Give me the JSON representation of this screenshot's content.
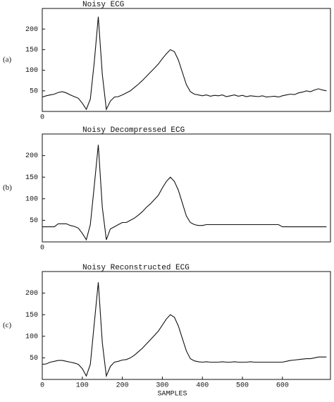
{
  "chart_data": [
    {
      "type": "line",
      "panel": "(a)",
      "title": "Noisy ECG",
      "x": [
        0,
        10,
        20,
        30,
        40,
        50,
        60,
        70,
        80,
        90,
        100,
        110,
        120,
        130,
        140,
        150,
        160,
        170,
        180,
        190,
        200,
        210,
        220,
        230,
        240,
        250,
        260,
        270,
        280,
        290,
        300,
        310,
        320,
        330,
        340,
        350,
        360,
        370,
        380,
        390,
        400,
        410,
        420,
        430,
        440,
        450,
        460,
        470,
        480,
        490,
        500,
        510,
        520,
        530,
        540,
        550,
        560,
        570,
        580,
        590,
        600,
        610,
        620,
        630,
        640,
        650,
        660,
        670,
        680,
        690,
        700,
        710
      ],
      "series": [
        {
          "color": "#111111",
          "values": [
            35,
            38,
            40,
            42,
            46,
            48,
            45,
            40,
            36,
            32,
            20,
            5,
            30,
            120,
            230,
            90,
            5,
            25,
            35,
            36,
            40,
            45,
            50,
            58,
            66,
            75,
            85,
            95,
            105,
            115,
            128,
            140,
            150,
            145,
            125,
            95,
            65,
            48,
            42,
            40,
            38,
            40,
            37,
            39,
            38,
            40,
            36,
            38,
            40,
            37,
            39,
            36,
            38,
            37,
            36,
            38,
            35,
            36,
            37,
            35,
            38,
            40,
            42,
            41,
            45,
            47,
            50,
            48,
            52,
            55,
            52,
            50
          ]
        }
      ],
      "xlim": [
        0,
        720
      ],
      "ylim": [
        0,
        250
      ],
      "xticks": [
        0
      ],
      "yticks": [
        50,
        100,
        150,
        200
      ]
    },
    {
      "type": "line",
      "panel": "(b)",
      "title": "Noisy Decompressed ECG",
      "x": [
        0,
        10,
        20,
        30,
        40,
        50,
        60,
        70,
        80,
        90,
        100,
        110,
        120,
        130,
        140,
        150,
        160,
        170,
        180,
        190,
        200,
        210,
        220,
        230,
        240,
        250,
        260,
        270,
        280,
        290,
        300,
        310,
        320,
        330,
        340,
        350,
        360,
        370,
        380,
        390,
        400,
        410,
        420,
        430,
        440,
        450,
        460,
        470,
        480,
        490,
        500,
        510,
        520,
        530,
        540,
        550,
        560,
        570,
        580,
        590,
        600,
        610,
        620,
        630,
        640,
        650,
        660,
        670,
        680,
        690,
        700,
        710
      ],
      "series": [
        {
          "color": "#111111",
          "values": [
            35,
            35,
            35,
            35,
            42,
            42,
            42,
            38,
            36,
            32,
            20,
            5,
            40,
            130,
            225,
            80,
            5,
            30,
            35,
            40,
            45,
            45,
            50,
            55,
            62,
            70,
            80,
            88,
            98,
            108,
            125,
            140,
            150,
            140,
            120,
            90,
            60,
            45,
            40,
            38,
            38,
            40,
            40,
            40,
            40,
            40,
            40,
            40,
            40,
            40,
            40,
            40,
            40,
            40,
            40,
            40,
            40,
            40,
            40,
            40,
            35,
            35,
            35,
            35,
            35,
            35,
            35,
            35,
            35,
            35,
            35,
            35
          ]
        }
      ],
      "xlim": [
        0,
        720
      ],
      "ylim": [
        0,
        250
      ],
      "xticks": [
        0
      ],
      "yticks": [
        50,
        100,
        150,
        200
      ]
    },
    {
      "type": "line",
      "panel": "(c)",
      "title": "Noisy Reconstructed ECG",
      "xlabel": "SAMPLES",
      "x": [
        0,
        10,
        20,
        30,
        40,
        50,
        60,
        70,
        80,
        90,
        100,
        110,
        120,
        130,
        140,
        150,
        160,
        170,
        180,
        190,
        200,
        210,
        220,
        230,
        240,
        250,
        260,
        270,
        280,
        290,
        300,
        310,
        320,
        330,
        340,
        350,
        360,
        370,
        380,
        390,
        400,
        410,
        420,
        430,
        440,
        450,
        460,
        470,
        480,
        490,
        500,
        510,
        520,
        530,
        540,
        550,
        560,
        570,
        580,
        590,
        600,
        610,
        620,
        630,
        640,
        650,
        660,
        670,
        680,
        690,
        700,
        710
      ],
      "series": [
        {
          "color": "#111111",
          "values": [
            35,
            36,
            40,
            42,
            44,
            44,
            42,
            40,
            38,
            35,
            25,
            8,
            35,
            130,
            225,
            85,
            8,
            30,
            40,
            42,
            45,
            46,
            50,
            56,
            64,
            72,
            82,
            92,
            102,
            112,
            126,
            140,
            150,
            144,
            124,
            95,
            66,
            48,
            43,
            41,
            40,
            41,
            40,
            40,
            40,
            41,
            40,
            40,
            41,
            40,
            40,
            40,
            41,
            40,
            40,
            40,
            40,
            40,
            40,
            40,
            40,
            42,
            44,
            45,
            46,
            47,
            48,
            48,
            50,
            52,
            52,
            52
          ]
        }
      ],
      "xlim": [
        0,
        720
      ],
      "ylim": [
        0,
        250
      ],
      "xticks": [
        0,
        100,
        200,
        300,
        400,
        500,
        600
      ],
      "yticks": [
        50,
        100,
        150,
        200
      ]
    }
  ]
}
